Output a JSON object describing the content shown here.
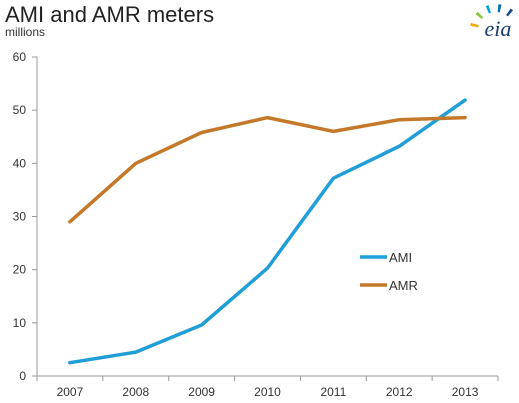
{
  "chart_data": {
    "type": "line",
    "title": "AMI and AMR meters",
    "ylabel": "millions",
    "xlabel": "",
    "categories": [
      "2007",
      "2008",
      "2009",
      "2010",
      "2011",
      "2012",
      "2013"
    ],
    "ylim": [
      0,
      60
    ],
    "yticks": [
      "0",
      "10",
      "20",
      "30",
      "40",
      "50",
      "60"
    ],
    "grid": false,
    "legend_placement": "center-right",
    "series": [
      {
        "name": "AMI",
        "color": "#1f9ed8",
        "values": [
          2.5,
          4.5,
          9.6,
          20.3,
          37.2,
          43.2,
          51.9
        ]
      },
      {
        "name": "AMR",
        "color": "#c4782a",
        "values": [
          29.0,
          40.0,
          45.8,
          48.6,
          46.0,
          48.2,
          48.6
        ]
      }
    ]
  },
  "branding": {
    "logo_text": "eia",
    "logo_colors": [
      "#f2a900",
      "#8dc63f",
      "#00a9e0",
      "#0072bc",
      "#1a4b8c"
    ]
  }
}
